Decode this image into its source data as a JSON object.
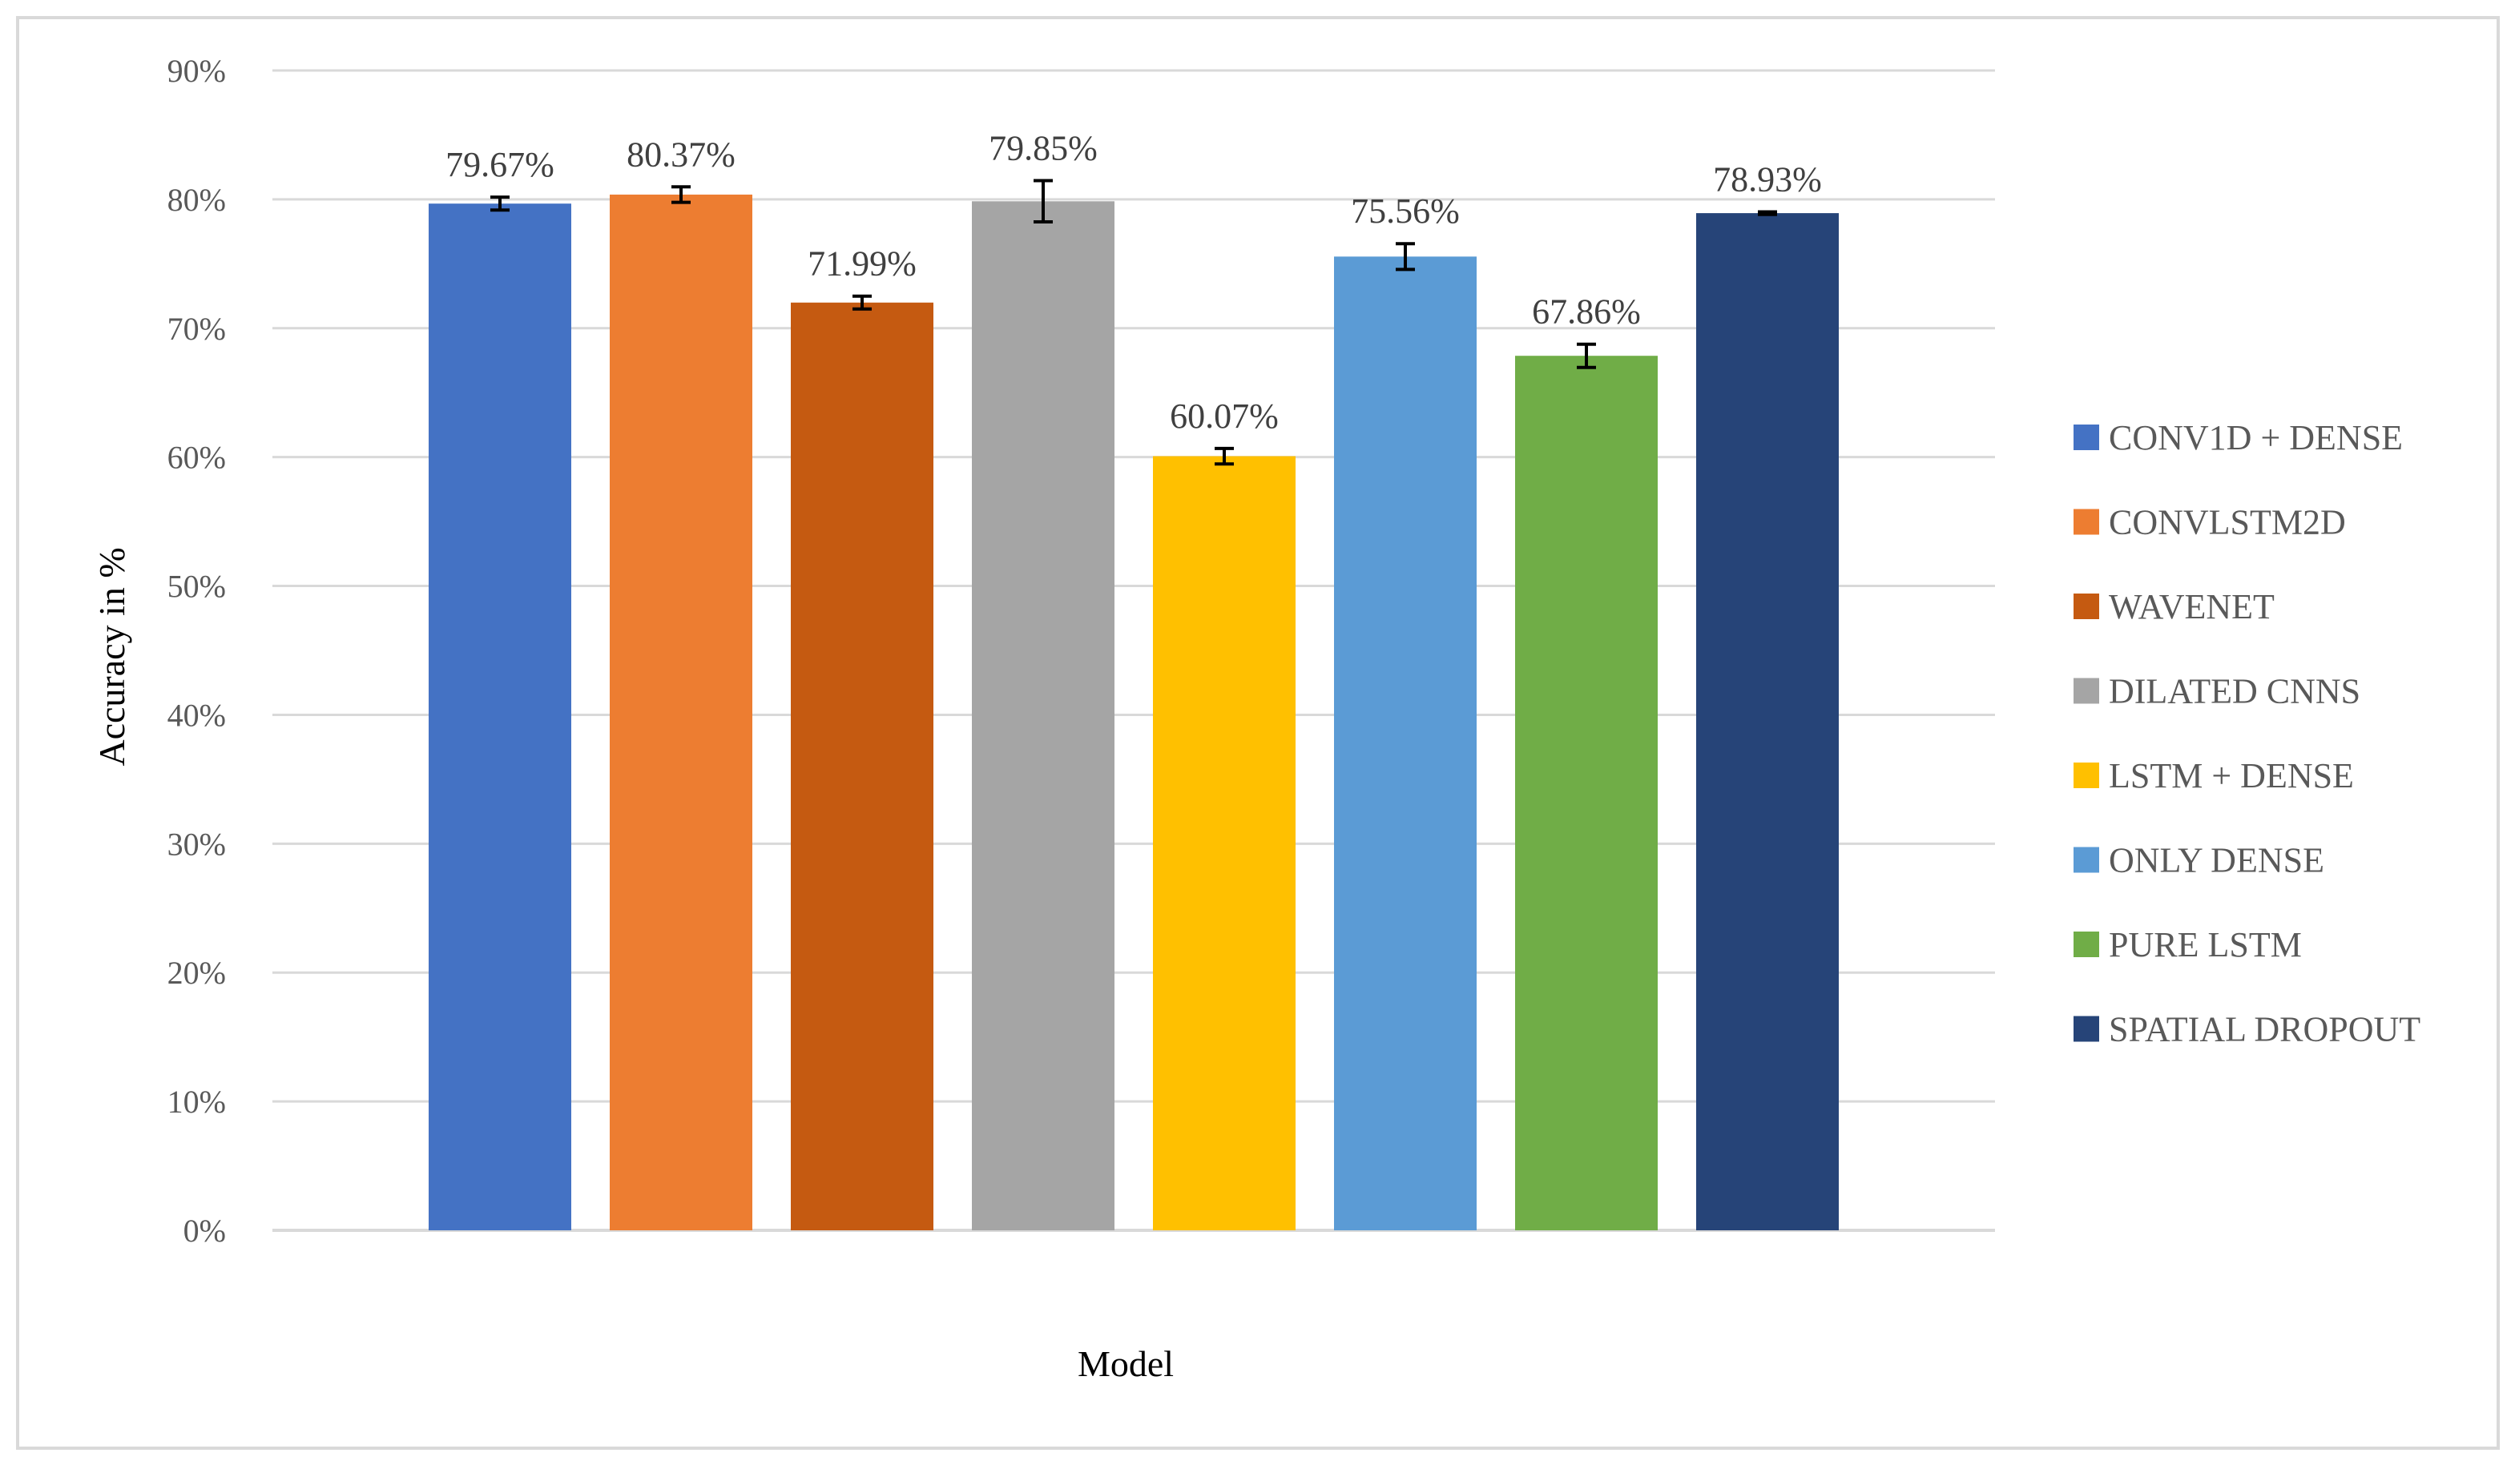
{
  "chart_data": {
    "type": "bar",
    "categories": [
      "CONV1D + DENSE",
      "CONVLSTM2D",
      "WAVENET",
      "DILATED CNNS",
      "LSTM + DENSE",
      "ONLY DENSE",
      "PURE LSTM",
      "SPATIAL DROPOUT"
    ],
    "series": [
      {
        "values": [
          79.67,
          80.37,
          71.99,
          79.85,
          60.07,
          75.56,
          67.86,
          78.93
        ],
        "error": [
          0.5,
          0.6,
          0.5,
          1.6,
          0.6,
          1.0,
          0.9,
          0.1
        ],
        "data_labels": [
          "79.67%",
          "80.37%",
          "71.99%",
          "79.85%",
          "60.07%",
          "75.56%",
          "67.86%",
          "78.93%"
        ]
      }
    ],
    "colors": [
      "#4472C4",
      "#ED7D31",
      "#C55A11",
      "#A5A5A5",
      "#FFC000",
      "#5B9BD5",
      "#70AD47",
      "#264478"
    ],
    "xlabel": "Model",
    "ylabel": "Accuracy in %",
    "ylim": [
      0,
      90
    ],
    "yticks": [
      "0%",
      "10%",
      "20%",
      "30%",
      "40%",
      "50%",
      "60%",
      "70%",
      "80%",
      "90%"
    ],
    "grid": true,
    "legend_position": "right"
  }
}
